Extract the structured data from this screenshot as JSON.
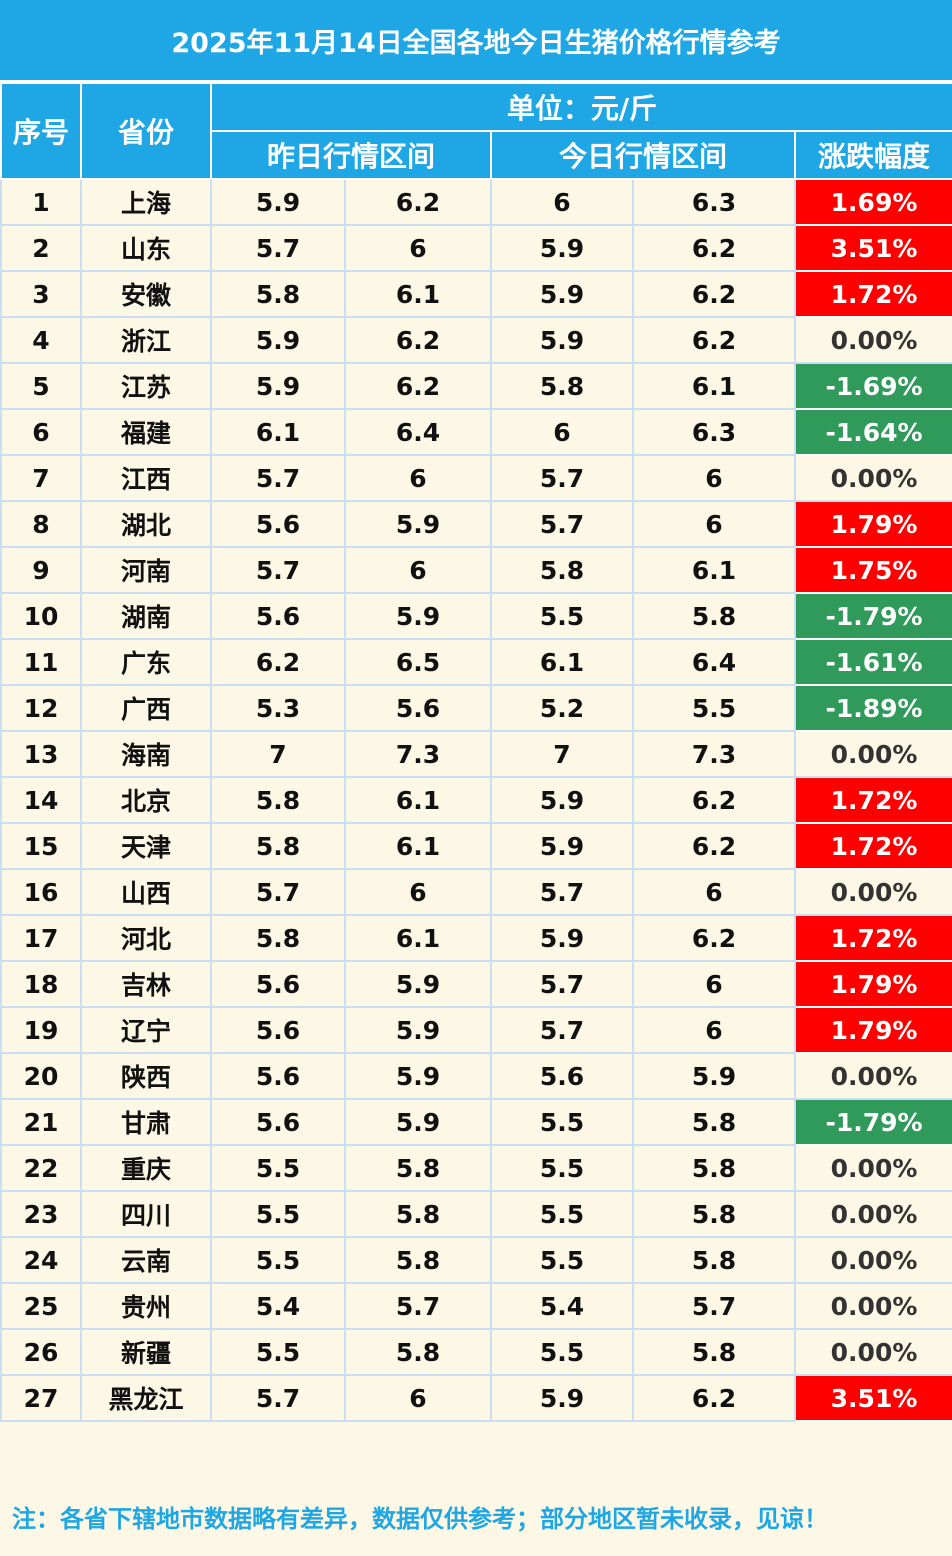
{
  "title": "2025年11月14日全国各地今日生猪价格行情参考",
  "header": {
    "col_index": "序号",
    "col_province": "省份",
    "unit": "单位：元/斤",
    "yesterday_range": "昨日行情区间",
    "today_range": "今日行情区间",
    "change": "涨跌幅度"
  },
  "colors": {
    "header_bg": "#1ea7e4",
    "up": "#ff0000",
    "down": "#2f9a5a",
    "row_bg": "#fdf8e6"
  },
  "rows": [
    {
      "idx": "1",
      "province": "上海",
      "y_low": "5.9",
      "y_high": "6.2",
      "t_low": "6",
      "t_high": "6.3",
      "change": "1.69%",
      "trend": "up"
    },
    {
      "idx": "2",
      "province": "山东",
      "y_low": "5.7",
      "y_high": "6",
      "t_low": "5.9",
      "t_high": "6.2",
      "change": "3.51%",
      "trend": "up"
    },
    {
      "idx": "3",
      "province": "安徽",
      "y_low": "5.8",
      "y_high": "6.1",
      "t_low": "5.9",
      "t_high": "6.2",
      "change": "1.72%",
      "trend": "up"
    },
    {
      "idx": "4",
      "province": "浙江",
      "y_low": "5.9",
      "y_high": "6.2",
      "t_low": "5.9",
      "t_high": "6.2",
      "change": "0.00%",
      "trend": "flat"
    },
    {
      "idx": "5",
      "province": "江苏",
      "y_low": "5.9",
      "y_high": "6.2",
      "t_low": "5.8",
      "t_high": "6.1",
      "change": "-1.69%",
      "trend": "down"
    },
    {
      "idx": "6",
      "province": "福建",
      "y_low": "6.1",
      "y_high": "6.4",
      "t_low": "6",
      "t_high": "6.3",
      "change": "-1.64%",
      "trend": "down"
    },
    {
      "idx": "7",
      "province": "江西",
      "y_low": "5.7",
      "y_high": "6",
      "t_low": "5.7",
      "t_high": "6",
      "change": "0.00%",
      "trend": "flat"
    },
    {
      "idx": "8",
      "province": "湖北",
      "y_low": "5.6",
      "y_high": "5.9",
      "t_low": "5.7",
      "t_high": "6",
      "change": "1.79%",
      "trend": "up"
    },
    {
      "idx": "9",
      "province": "河南",
      "y_low": "5.7",
      "y_high": "6",
      "t_low": "5.8",
      "t_high": "6.1",
      "change": "1.75%",
      "trend": "up"
    },
    {
      "idx": "10",
      "province": "湖南",
      "y_low": "5.6",
      "y_high": "5.9",
      "t_low": "5.5",
      "t_high": "5.8",
      "change": "-1.79%",
      "trend": "down"
    },
    {
      "idx": "11",
      "province": "广东",
      "y_low": "6.2",
      "y_high": "6.5",
      "t_low": "6.1",
      "t_high": "6.4",
      "change": "-1.61%",
      "trend": "down"
    },
    {
      "idx": "12",
      "province": "广西",
      "y_low": "5.3",
      "y_high": "5.6",
      "t_low": "5.2",
      "t_high": "5.5",
      "change": "-1.89%",
      "trend": "down"
    },
    {
      "idx": "13",
      "province": "海南",
      "y_low": "7",
      "y_high": "7.3",
      "t_low": "7",
      "t_high": "7.3",
      "change": "0.00%",
      "trend": "flat"
    },
    {
      "idx": "14",
      "province": "北京",
      "y_low": "5.8",
      "y_high": "6.1",
      "t_low": "5.9",
      "t_high": "6.2",
      "change": "1.72%",
      "trend": "up"
    },
    {
      "idx": "15",
      "province": "天津",
      "y_low": "5.8",
      "y_high": "6.1",
      "t_low": "5.9",
      "t_high": "6.2",
      "change": "1.72%",
      "trend": "up"
    },
    {
      "idx": "16",
      "province": "山西",
      "y_low": "5.7",
      "y_high": "6",
      "t_low": "5.7",
      "t_high": "6",
      "change": "0.00%",
      "trend": "flat"
    },
    {
      "idx": "17",
      "province": "河北",
      "y_low": "5.8",
      "y_high": "6.1",
      "t_low": "5.9",
      "t_high": "6.2",
      "change": "1.72%",
      "trend": "up"
    },
    {
      "idx": "18",
      "province": "吉林",
      "y_low": "5.6",
      "y_high": "5.9",
      "t_low": "5.7",
      "t_high": "6",
      "change": "1.79%",
      "trend": "up"
    },
    {
      "idx": "19",
      "province": "辽宁",
      "y_low": "5.6",
      "y_high": "5.9",
      "t_low": "5.7",
      "t_high": "6",
      "change": "1.79%",
      "trend": "up"
    },
    {
      "idx": "20",
      "province": "陕西",
      "y_low": "5.6",
      "y_high": "5.9",
      "t_low": "5.6",
      "t_high": "5.9",
      "change": "0.00%",
      "trend": "flat"
    },
    {
      "idx": "21",
      "province": "甘肃",
      "y_low": "5.6",
      "y_high": "5.9",
      "t_low": "5.5",
      "t_high": "5.8",
      "change": "-1.79%",
      "trend": "down"
    },
    {
      "idx": "22",
      "province": "重庆",
      "y_low": "5.5",
      "y_high": "5.8",
      "t_low": "5.5",
      "t_high": "5.8",
      "change": "0.00%",
      "trend": "flat"
    },
    {
      "idx": "23",
      "province": "四川",
      "y_low": "5.5",
      "y_high": "5.8",
      "t_low": "5.5",
      "t_high": "5.8",
      "change": "0.00%",
      "trend": "flat"
    },
    {
      "idx": "24",
      "province": "云南",
      "y_low": "5.5",
      "y_high": "5.8",
      "t_low": "5.5",
      "t_high": "5.8",
      "change": "0.00%",
      "trend": "flat"
    },
    {
      "idx": "25",
      "province": "贵州",
      "y_low": "5.4",
      "y_high": "5.7",
      "t_low": "5.4",
      "t_high": "5.7",
      "change": "0.00%",
      "trend": "flat"
    },
    {
      "idx": "26",
      "province": "新疆",
      "y_low": "5.5",
      "y_high": "5.8",
      "t_low": "5.5",
      "t_high": "5.8",
      "change": "0.00%",
      "trend": "flat"
    },
    {
      "idx": "27",
      "province": "黑龙江",
      "y_low": "5.7",
      "y_high": "6",
      "t_low": "5.9",
      "t_high": "6.2",
      "change": "3.51%",
      "trend": "up"
    }
  ],
  "note": "注：各省下辖地市数据略有差异，数据仅供参考；部分地区暂未收录，见谅！"
}
